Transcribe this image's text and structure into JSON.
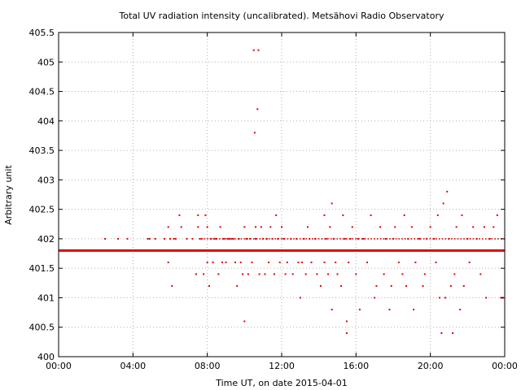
{
  "chart_data": {
    "type": "scatter",
    "title": "Total UV radiation intensity (uncalibrated). Metsähovi Radio Observatory",
    "xlabel": "Time UT, on date 2015-04-01",
    "ylabel": "Arbitrary unit",
    "xlim": [
      0,
      24
    ],
    "ylim": [
      400,
      405.5
    ],
    "x_ticks": [
      {
        "value": 0,
        "label": "00:00"
      },
      {
        "value": 4,
        "label": "04:00"
      },
      {
        "value": 8,
        "label": "08:00"
      },
      {
        "value": 12,
        "label": "12:00"
      },
      {
        "value": 16,
        "label": "16:00"
      },
      {
        "value": 20,
        "label": "20:00"
      },
      {
        "value": 24,
        "label": "00:00"
      }
    ],
    "y_ticks": [
      {
        "value": 400,
        "label": "400"
      },
      {
        "value": 400.5,
        "label": "400.5"
      },
      {
        "value": 401,
        "label": "401"
      },
      {
        "value": 401.5,
        "label": "401.5"
      },
      {
        "value": 402,
        "label": "402"
      },
      {
        "value": 402.5,
        "label": "402.5"
      },
      {
        "value": 403,
        "label": "403"
      },
      {
        "value": 403.5,
        "label": "403.5"
      },
      {
        "value": 404,
        "label": "404"
      },
      {
        "value": 404.5,
        "label": "404.5"
      },
      {
        "value": 405,
        "label": "405"
      },
      {
        "value": 405.5,
        "label": "405.5"
      }
    ],
    "grid": true,
    "marker_color": "#e00000",
    "baseline": {
      "x_start": 0,
      "x_end": 24,
      "y": 401.8
    },
    "points": [
      [
        2.5,
        402.0
      ],
      [
        3.2,
        402.0
      ],
      [
        3.7,
        402.0
      ],
      [
        4.8,
        402.0
      ],
      [
        4.9,
        402.0
      ],
      [
        5.2,
        402.0
      ],
      [
        5.7,
        402.0
      ],
      [
        5.9,
        402.2
      ],
      [
        5.9,
        401.6
      ],
      [
        6.0,
        402.0
      ],
      [
        6.1,
        401.2
      ],
      [
        6.2,
        402.0
      ],
      [
        6.3,
        402.0
      ],
      [
        6.5,
        402.4
      ],
      [
        6.6,
        402.2
      ],
      [
        6.9,
        402.0
      ],
      [
        7.2,
        402.0
      ],
      [
        7.4,
        401.4
      ],
      [
        7.5,
        402.4
      ],
      [
        7.5,
        402.2
      ],
      [
        7.6,
        402.0
      ],
      [
        7.7,
        402.0
      ],
      [
        7.8,
        401.4
      ],
      [
        7.9,
        402.4
      ],
      [
        8.0,
        402.2
      ],
      [
        8.0,
        401.6
      ],
      [
        8.1,
        401.2
      ],
      [
        8.2,
        402.0
      ],
      [
        8.3,
        401.6
      ],
      [
        8.4,
        402.0
      ],
      [
        8.5,
        402.0
      ],
      [
        8.6,
        401.4
      ],
      [
        8.7,
        402.2
      ],
      [
        8.8,
        401.6
      ],
      [
        8.9,
        402.0
      ],
      [
        9.0,
        401.6
      ],
      [
        9.1,
        402.0
      ],
      [
        9.2,
        402.0
      ],
      [
        9.3,
        402.0
      ],
      [
        9.4,
        402.0
      ],
      [
        9.5,
        401.6
      ],
      [
        9.6,
        401.2
      ],
      [
        9.7,
        402.0
      ],
      [
        9.8,
        401.6
      ],
      [
        9.9,
        401.4
      ],
      [
        10.0,
        402.2
      ],
      [
        10.0,
        400.6
      ],
      [
        10.1,
        402.0
      ],
      [
        10.2,
        401.4
      ],
      [
        10.3,
        402.0
      ],
      [
        10.4,
        401.6
      ],
      [
        10.5,
        405.2
      ],
      [
        10.55,
        403.8
      ],
      [
        10.6,
        402.2
      ],
      [
        10.6,
        402.0
      ],
      [
        10.7,
        404.2
      ],
      [
        10.75,
        405.2
      ],
      [
        10.8,
        401.4
      ],
      [
        10.9,
        402.2
      ],
      [
        11.0,
        402.0
      ],
      [
        11.1,
        401.4
      ],
      [
        11.2,
        402.0
      ],
      [
        11.3,
        401.6
      ],
      [
        11.4,
        402.2
      ],
      [
        11.5,
        402.0
      ],
      [
        11.6,
        401.4
      ],
      [
        11.7,
        402.4
      ],
      [
        11.8,
        402.0
      ],
      [
        11.9,
        401.6
      ],
      [
        12.0,
        402.2
      ],
      [
        12.1,
        402.0
      ],
      [
        12.2,
        401.4
      ],
      [
        12.3,
        401.6
      ],
      [
        12.5,
        402.0
      ],
      [
        12.6,
        401.4
      ],
      [
        12.8,
        402.0
      ],
      [
        12.9,
        401.6
      ],
      [
        13.0,
        401.0
      ],
      [
        13.1,
        401.6
      ],
      [
        13.2,
        402.0
      ],
      [
        13.3,
        401.4
      ],
      [
        13.4,
        402.2
      ],
      [
        13.5,
        402.0
      ],
      [
        13.6,
        401.6
      ],
      [
        13.8,
        402.0
      ],
      [
        13.9,
        401.4
      ],
      [
        14.1,
        401.2
      ],
      [
        14.3,
        402.4
      ],
      [
        14.3,
        401.6
      ],
      [
        14.4,
        402.0
      ],
      [
        14.5,
        401.4
      ],
      [
        14.6,
        402.2
      ],
      [
        14.7,
        402.6
      ],
      [
        14.7,
        400.8
      ],
      [
        14.8,
        402.0
      ],
      [
        14.9,
        401.6
      ],
      [
        15.0,
        401.4
      ],
      [
        15.2,
        401.2
      ],
      [
        15.3,
        402.4
      ],
      [
        15.4,
        402.0
      ],
      [
        15.5,
        400.6
      ],
      [
        15.5,
        400.4
      ],
      [
        15.6,
        401.6
      ],
      [
        15.7,
        402.0
      ],
      [
        15.8,
        402.2
      ],
      [
        16.0,
        401.4
      ],
      [
        16.1,
        402.0
      ],
      [
        16.2,
        400.8
      ],
      [
        16.4,
        402.0
      ],
      [
        16.6,
        401.6
      ],
      [
        16.8,
        402.4
      ],
      [
        17.0,
        401.0
      ],
      [
        17.1,
        401.2
      ],
      [
        17.3,
        402.2
      ],
      [
        17.5,
        401.4
      ],
      [
        17.6,
        402.0
      ],
      [
        17.8,
        400.8
      ],
      [
        17.9,
        401.2
      ],
      [
        18.0,
        402.0
      ],
      [
        18.1,
        402.2
      ],
      [
        18.3,
        401.6
      ],
      [
        18.5,
        401.4
      ],
      [
        18.6,
        402.4
      ],
      [
        18.7,
        401.2
      ],
      [
        18.8,
        402.0
      ],
      [
        19.0,
        402.2
      ],
      [
        19.1,
        400.8
      ],
      [
        19.2,
        401.6
      ],
      [
        19.4,
        402.0
      ],
      [
        19.6,
        401.2
      ],
      [
        19.7,
        401.4
      ],
      [
        19.8,
        402.0
      ],
      [
        20.0,
        402.2
      ],
      [
        20.2,
        402.0
      ],
      [
        20.3,
        401.6
      ],
      [
        20.4,
        402.4
      ],
      [
        20.5,
        401.0
      ],
      [
        20.6,
        400.4
      ],
      [
        20.7,
        402.6
      ],
      [
        20.8,
        401.0
      ],
      [
        20.9,
        402.8
      ],
      [
        21.0,
        402.0
      ],
      [
        21.1,
        401.2
      ],
      [
        21.2,
        400.4
      ],
      [
        21.3,
        401.4
      ],
      [
        21.4,
        402.2
      ],
      [
        21.6,
        400.8
      ],
      [
        21.7,
        402.4
      ],
      [
        21.8,
        401.2
      ],
      [
        22.0,
        402.0
      ],
      [
        22.1,
        401.6
      ],
      [
        22.3,
        402.2
      ],
      [
        22.5,
        402.0
      ],
      [
        22.7,
        401.4
      ],
      [
        22.9,
        402.2
      ],
      [
        23.0,
        401.0
      ],
      [
        23.2,
        402.0
      ],
      [
        23.4,
        402.2
      ],
      [
        23.6,
        402.4
      ],
      [
        23.8,
        401.0
      ],
      [
        23.9,
        401.0
      ]
    ],
    "dense_band": {
      "y": 402.0,
      "x_start": 7.8,
      "x_end": 24
    }
  }
}
